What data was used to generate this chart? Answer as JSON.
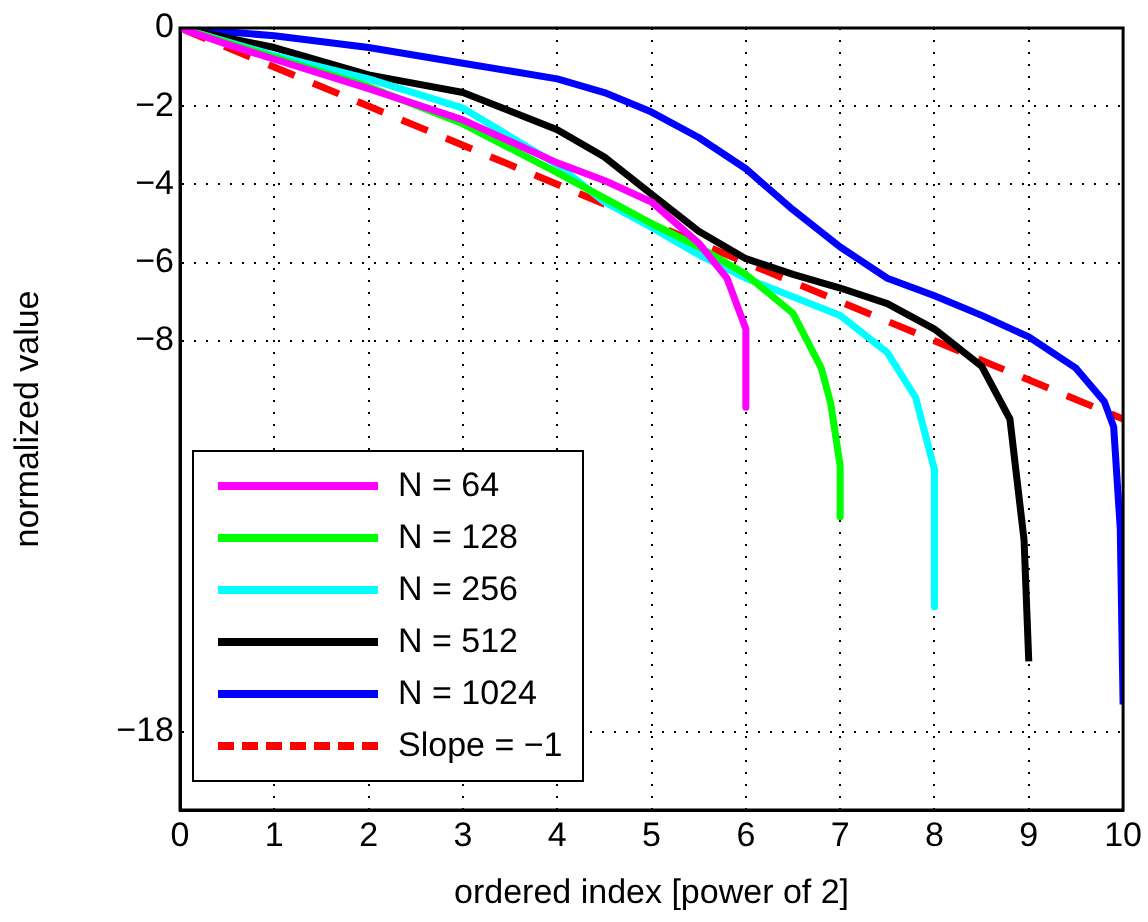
{
  "chart_data": {
    "type": "line",
    "xlabel": "ordered index [power of 2]",
    "ylabel": "normalized value",
    "xlim": [
      0,
      10
    ],
    "xticks": [
      0,
      1,
      2,
      3,
      4,
      5,
      6,
      7,
      8,
      9,
      10
    ],
    "ylim": [
      -20,
      0
    ],
    "yticks": [
      -18,
      -8,
      -6,
      -4,
      -2,
      0
    ],
    "grid": true,
    "legend": "bottom left",
    "marker": "none",
    "series": [
      {
        "name": "N = 64",
        "color": "#ff00ff",
        "x": [
          0,
          0.5,
          1,
          2,
          3,
          4,
          4.5,
          5,
          5.5,
          5.8,
          6,
          6
        ],
        "values": [
          0,
          -0.42,
          -0.8,
          -1.55,
          -2.35,
          -3.45,
          -3.9,
          -4.45,
          -5.5,
          -6.4,
          -7.7,
          -9.7
        ]
      },
      {
        "name": "N = 128",
        "color": "#00ff00",
        "x": [
          0,
          1,
          2,
          3,
          4,
          4.5,
          5,
          5.5,
          6,
          6.5,
          6.8,
          6.9,
          7,
          7
        ],
        "values": [
          0,
          -0.75,
          -1.5,
          -2.45,
          -3.7,
          -4.35,
          -5,
          -5.6,
          -6.3,
          -7.3,
          -8.7,
          -9.6,
          -11.2,
          -12.5
        ]
      },
      {
        "name": "N = 256",
        "color": "#00ffff",
        "x": [
          0,
          1,
          2,
          3,
          4,
          4.5,
          5,
          5.5,
          6,
          7,
          7.5,
          7.8,
          8,
          8
        ],
        "values": [
          0,
          -0.7,
          -1.3,
          -2.05,
          -3.5,
          -4.45,
          -5.1,
          -5.8,
          -6.4,
          -7.35,
          -8.3,
          -9.45,
          -11.3,
          -14.8
        ]
      },
      {
        "name": "N = 512",
        "color": "#000000",
        "x": [
          0,
          1,
          2,
          3,
          4,
          4.5,
          5,
          5.5,
          6,
          6.5,
          7,
          7.5,
          8,
          8.5,
          8.8,
          8.95,
          9
        ],
        "values": [
          0,
          -0.5,
          -1.2,
          -1.65,
          -2.6,
          -3.3,
          -4.25,
          -5.2,
          -5.9,
          -6.3,
          -6.65,
          -7.05,
          -7.7,
          -8.65,
          -10,
          -13.1,
          -16.2
        ]
      },
      {
        "name": "N = 1024",
        "color": "#0000ff",
        "x": [
          0,
          1,
          2,
          3,
          4,
          4.5,
          5,
          5.5,
          6,
          6.5,
          7,
          7.5,
          8,
          8.5,
          9,
          9.5,
          9.8,
          9.9,
          9.97,
          10
        ],
        "values": [
          0,
          -0.2,
          -0.5,
          -0.9,
          -1.3,
          -1.65,
          -2.15,
          -2.8,
          -3.6,
          -4.65,
          -5.6,
          -6.4,
          -6.85,
          -7.35,
          -7.9,
          -8.7,
          -9.55,
          -10.2,
          -12.8,
          -17.3
        ]
      },
      {
        "name": "Slope = −1",
        "color": "#ff0000",
        "line_style": "dashed",
        "x": [
          0,
          10
        ],
        "values": [
          0,
          -10
        ]
      }
    ]
  }
}
